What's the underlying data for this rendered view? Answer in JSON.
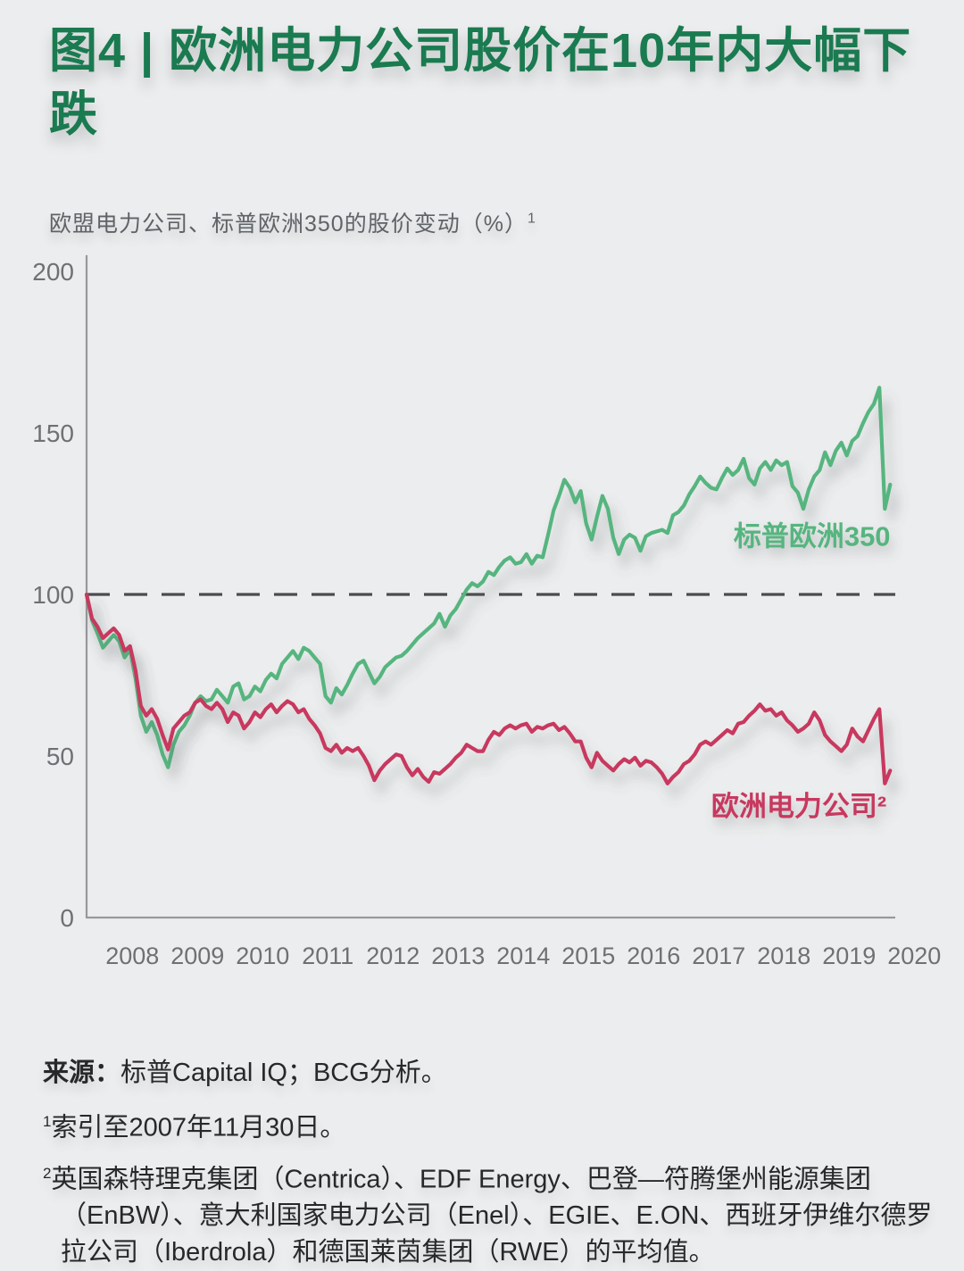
{
  "figure": {
    "title": "图4 | 欧洲电力公司股价在10年内大幅下跌",
    "subtitle": "欧盟电力公司、标普欧洲350的股价变动（%）",
    "subtitle_sup": "1"
  },
  "chart_data": {
    "type": "line",
    "title": "欧盟电力公司、标普欧洲350的股价变动（%）",
    "x_start": 2007.917,
    "x_step_months": 1,
    "x_tick_labels": [
      "2008",
      "2009",
      "2010",
      "2011",
      "2012",
      "2013",
      "2014",
      "2015",
      "2016",
      "2017",
      "2018",
      "2019",
      "2020"
    ],
    "ylim": [
      0,
      200
    ],
    "y_ticks": [
      0,
      50,
      100,
      150,
      200
    ],
    "reference_line": 100,
    "grid": false,
    "legend_position": "inline-labels",
    "colors": {
      "sp_europe_350": "#57b57f",
      "eu_utilities": "#c8395e",
      "title_green": "#1a7a50",
      "background": "#ecedee",
      "dashed_line": "#4a4c4e"
    },
    "series": [
      {
        "name": "标普欧洲350",
        "color": "#57b57f",
        "values": [
          100,
          92,
          88,
          83.5,
          85.5,
          87.5,
          85.5,
          80.5,
          83,
          74,
          62.5,
          57.5,
          60.5,
          56.5,
          50.5,
          46.5,
          53.5,
          57.5,
          59.5,
          62.5,
          66.5,
          68.5,
          67,
          67.5,
          70.5,
          68.5,
          66.5,
          71.5,
          72.5,
          67.5,
          68.5,
          71.5,
          70,
          73.5,
          75.5,
          74,
          78.5,
          80.5,
          82.5,
          80,
          83.5,
          82.5,
          80.5,
          78.5,
          68.5,
          66.5,
          71,
          69,
          72,
          75.5,
          78.5,
          79.5,
          76,
          72.5,
          74.5,
          77.5,
          79,
          80.5,
          81,
          82.5,
          84.5,
          86.5,
          88,
          89.5,
          91,
          94,
          90,
          93.5,
          95.5,
          98.5,
          101.5,
          103.5,
          102.5,
          104,
          107,
          106,
          108.5,
          110.5,
          111.5,
          109.5,
          110,
          112.5,
          109.5,
          112,
          111.5,
          118.5,
          126,
          130.5,
          135.5,
          133,
          128.5,
          132,
          122,
          117,
          124,
          130.5,
          126.5,
          117.5,
          112.5,
          117,
          118.5,
          117.5,
          113.5,
          118,
          119,
          119.5,
          120,
          119,
          124.5,
          125.5,
          127.5,
          131,
          133.5,
          136.5,
          134.5,
          133,
          132.5,
          136,
          139,
          137,
          138.5,
          142,
          136,
          134,
          139,
          141,
          138.5,
          141.5,
          140,
          141,
          133.5,
          131.5,
          126.5,
          132.5,
          136.5,
          138.5,
          144,
          140,
          144.5,
          147,
          143,
          147.5,
          149,
          153,
          156.5,
          159,
          164,
          126.5,
          134
        ]
      },
      {
        "name": "欧洲电力公司²",
        "color": "#c8395e",
        "values": [
          100,
          92.5,
          90,
          86.5,
          88,
          89.5,
          87.5,
          82.5,
          84,
          76.5,
          65.5,
          62.5,
          64.5,
          61.5,
          56.5,
          52,
          58.5,
          60.5,
          62.5,
          63.5,
          66.5,
          67.5,
          65.5,
          64.5,
          66.5,
          64.5,
          60.5,
          63.5,
          62.5,
          58.5,
          60.5,
          63.5,
          62,
          64.5,
          66,
          63.5,
          65.5,
          67,
          66,
          63.5,
          64.5,
          61.5,
          59.5,
          57,
          52.5,
          51.5,
          53.5,
          51,
          52.5,
          51.5,
          52.5,
          50,
          47,
          42.5,
          45.5,
          47.5,
          49,
          50.5,
          50,
          46.5,
          44,
          46,
          43.5,
          42,
          45,
          44.5,
          46,
          47.5,
          49.5,
          51,
          53.5,
          52.5,
          51.5,
          51.5,
          55,
          57.5,
          56.5,
          58.5,
          59.5,
          58.5,
          59.5,
          60,
          57.5,
          59,
          58.5,
          59.5,
          60,
          58,
          59,
          57,
          54.5,
          54.5,
          49.5,
          46.5,
          51,
          48.5,
          47,
          45.5,
          47.5,
          49,
          48,
          49.5,
          47,
          48.5,
          48,
          46.5,
          44.5,
          41.5,
          43.5,
          45,
          47.5,
          48.5,
          50.5,
          53.5,
          54.5,
          53.5,
          55,
          56.5,
          58,
          57,
          60,
          60.5,
          62.5,
          64,
          66,
          64,
          64.5,
          62.5,
          63.5,
          61,
          59.5,
          57.5,
          58.5,
          60,
          63.5,
          61,
          56.5,
          54.5,
          53,
          51.5,
          53.5,
          58.5,
          56,
          54.5,
          58,
          61.5,
          64.5,
          41.5,
          45.5
        ]
      }
    ],
    "labels": [
      {
        "x": 2019.05,
        "y": 115
      },
      {
        "x": 2018.85,
        "y": 31.5
      }
    ]
  },
  "footer": {
    "source_label": "来源：",
    "source_text": "标普Capital IQ；BCG分析。",
    "footnote1_marker": "1",
    "footnote1": "索引至2007年11月30日。",
    "footnote2_marker": "2",
    "footnote2": "英国森特理克集团（Centrica）、EDF Energy、巴登—符腾堡州能源集团（EnBW）、意大利国家电力公司（Enel）、EGIE、E.ON、西班牙伊维尔德罗拉公司（Iberdrola）和德国莱茵集团（RWE）的平均值。"
  }
}
